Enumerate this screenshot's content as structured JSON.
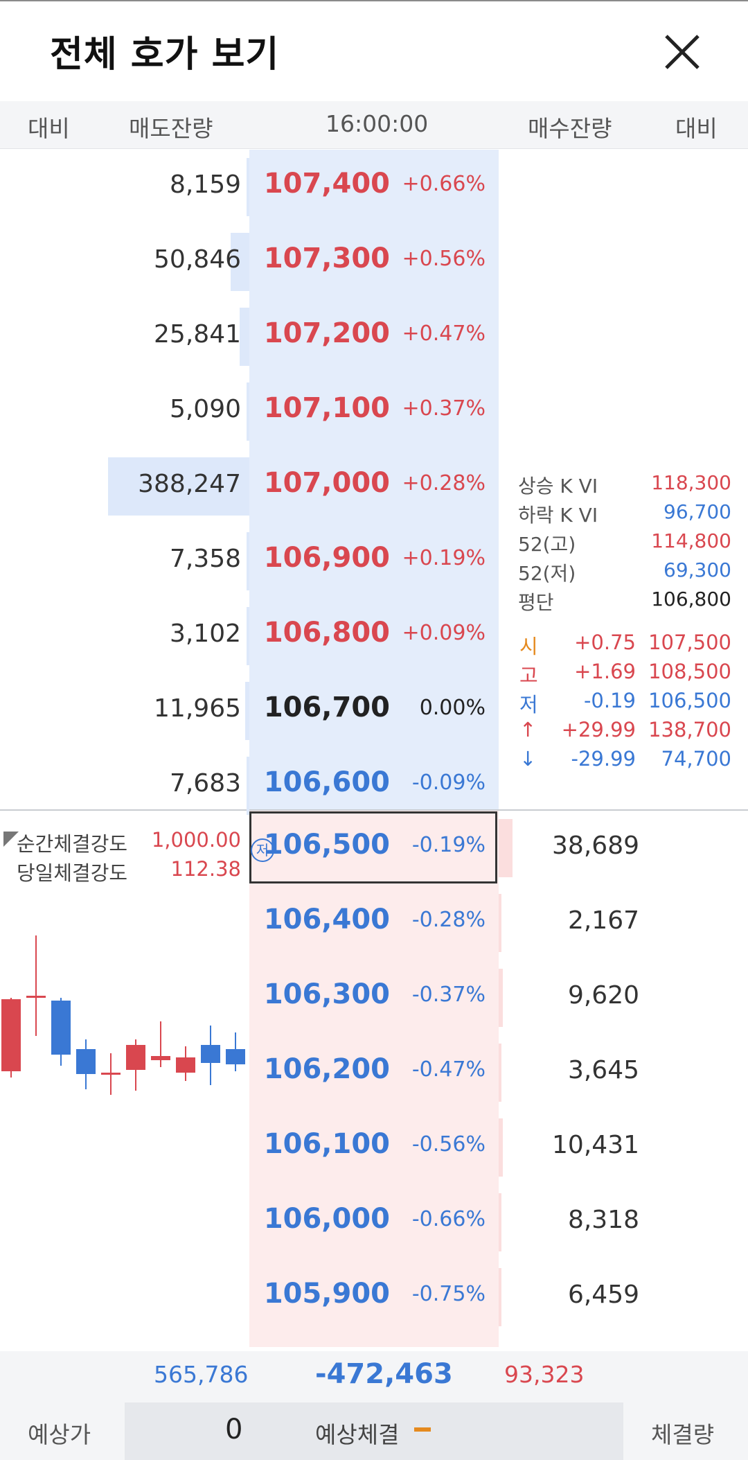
{
  "title": "전체 호가 보기",
  "header": {
    "col1": "대비",
    "col2": "매도잔량",
    "time": "16:00:00",
    "col4": "매수잔량",
    "col5": "대비"
  },
  "asks": [
    {
      "qty": "8,159",
      "price": "107,400",
      "pct": "+0.66%",
      "bar": 0.02
    },
    {
      "qty": "50,846",
      "price": "107,300",
      "pct": "+0.56%",
      "bar": 0.13
    },
    {
      "qty": "25,841",
      "price": "107,200",
      "pct": "+0.47%",
      "bar": 0.07
    },
    {
      "qty": "5,090",
      "price": "107,100",
      "pct": "+0.37%",
      "bar": 0.01
    },
    {
      "qty": "388,247",
      "price": "107,000",
      "pct": "+0.28%",
      "bar": 1.0
    },
    {
      "qty": "7,358",
      "price": "106,900",
      "pct": "+0.19%",
      "bar": 0.02
    },
    {
      "qty": "3,102",
      "price": "106,800",
      "pct": "+0.09%",
      "bar": 0.01
    },
    {
      "qty": "11,965",
      "price": "106,700",
      "pct": "0.00%",
      "bar": 0.03
    },
    {
      "qty": "7,683",
      "price": "106,600",
      "pct": "-0.09%",
      "bar": 0.02
    }
  ],
  "bids": [
    {
      "qty": "38,689",
      "price": "106,500",
      "pct": "-0.19%",
      "bar": 0.1
    },
    {
      "qty": "2,167",
      "price": "106,400",
      "pct": "-0.28%",
      "bar": 0.01
    },
    {
      "qty": "9,620",
      "price": "106,300",
      "pct": "-0.37%",
      "bar": 0.03
    },
    {
      "qty": "3,645",
      "price": "106,200",
      "pct": "-0.47%",
      "bar": 0.01
    },
    {
      "qty": "10,431",
      "price": "106,100",
      "pct": "-0.56%",
      "bar": 0.03
    },
    {
      "qty": "8,318",
      "price": "106,000",
      "pct": "-0.66%",
      "bar": 0.02
    },
    {
      "qty": "6,459",
      "price": "105,900",
      "pct": "-0.75%",
      "bar": 0.02
    }
  ],
  "low_marker": "저",
  "info": [
    {
      "label": "상승 K VI",
      "value": "118,300",
      "color": "red"
    },
    {
      "label": "하락 K VI",
      "value": "96,700",
      "color": "blue"
    },
    {
      "label": "52(고)",
      "value": "114,800",
      "color": "red"
    },
    {
      "label": "52(저)",
      "value": "69,300",
      "color": "blue"
    },
    {
      "label": "평단",
      "value": "106,800",
      "color": "dark"
    }
  ],
  "ohlc": [
    {
      "label": "시",
      "change": "+0.75",
      "value": "107,500",
      "color": "red",
      "labelColor": "orange"
    },
    {
      "label": "고",
      "change": "+1.69",
      "value": "108,500",
      "color": "red",
      "labelColor": "red"
    },
    {
      "label": "저",
      "change": "-0.19",
      "value": "106,500",
      "color": "blue",
      "labelColor": "blue"
    },
    {
      "label": "↑",
      "change": "+29.99",
      "value": "138,700",
      "color": "red",
      "labelColor": "red"
    },
    {
      "label": "↓",
      "change": "-29.99",
      "value": "74,700",
      "color": "blue",
      "labelColor": "blue"
    }
  ],
  "strength": [
    {
      "label": "순간체결강도",
      "value": "1,000.00"
    },
    {
      "label": "당일체결강도",
      "value": "112.38"
    }
  ],
  "totals": {
    "ask_total": "565,786",
    "diff": "-472,463",
    "bid_total": "93,323"
  },
  "bottom": {
    "expected_price_label": "예상가",
    "expected_price": "0",
    "expected_trade_label": "예상체결",
    "volume_label": "체결량"
  },
  "colors": {
    "red": "#d9474f",
    "blue": "#3a78d4",
    "orange": "#e58a1f",
    "ask_bg": "#e4edfb",
    "bid_bg": "#fdecec"
  },
  "icons": {
    "close": "close-icon",
    "triangle": "corner-triangle-icon"
  }
}
